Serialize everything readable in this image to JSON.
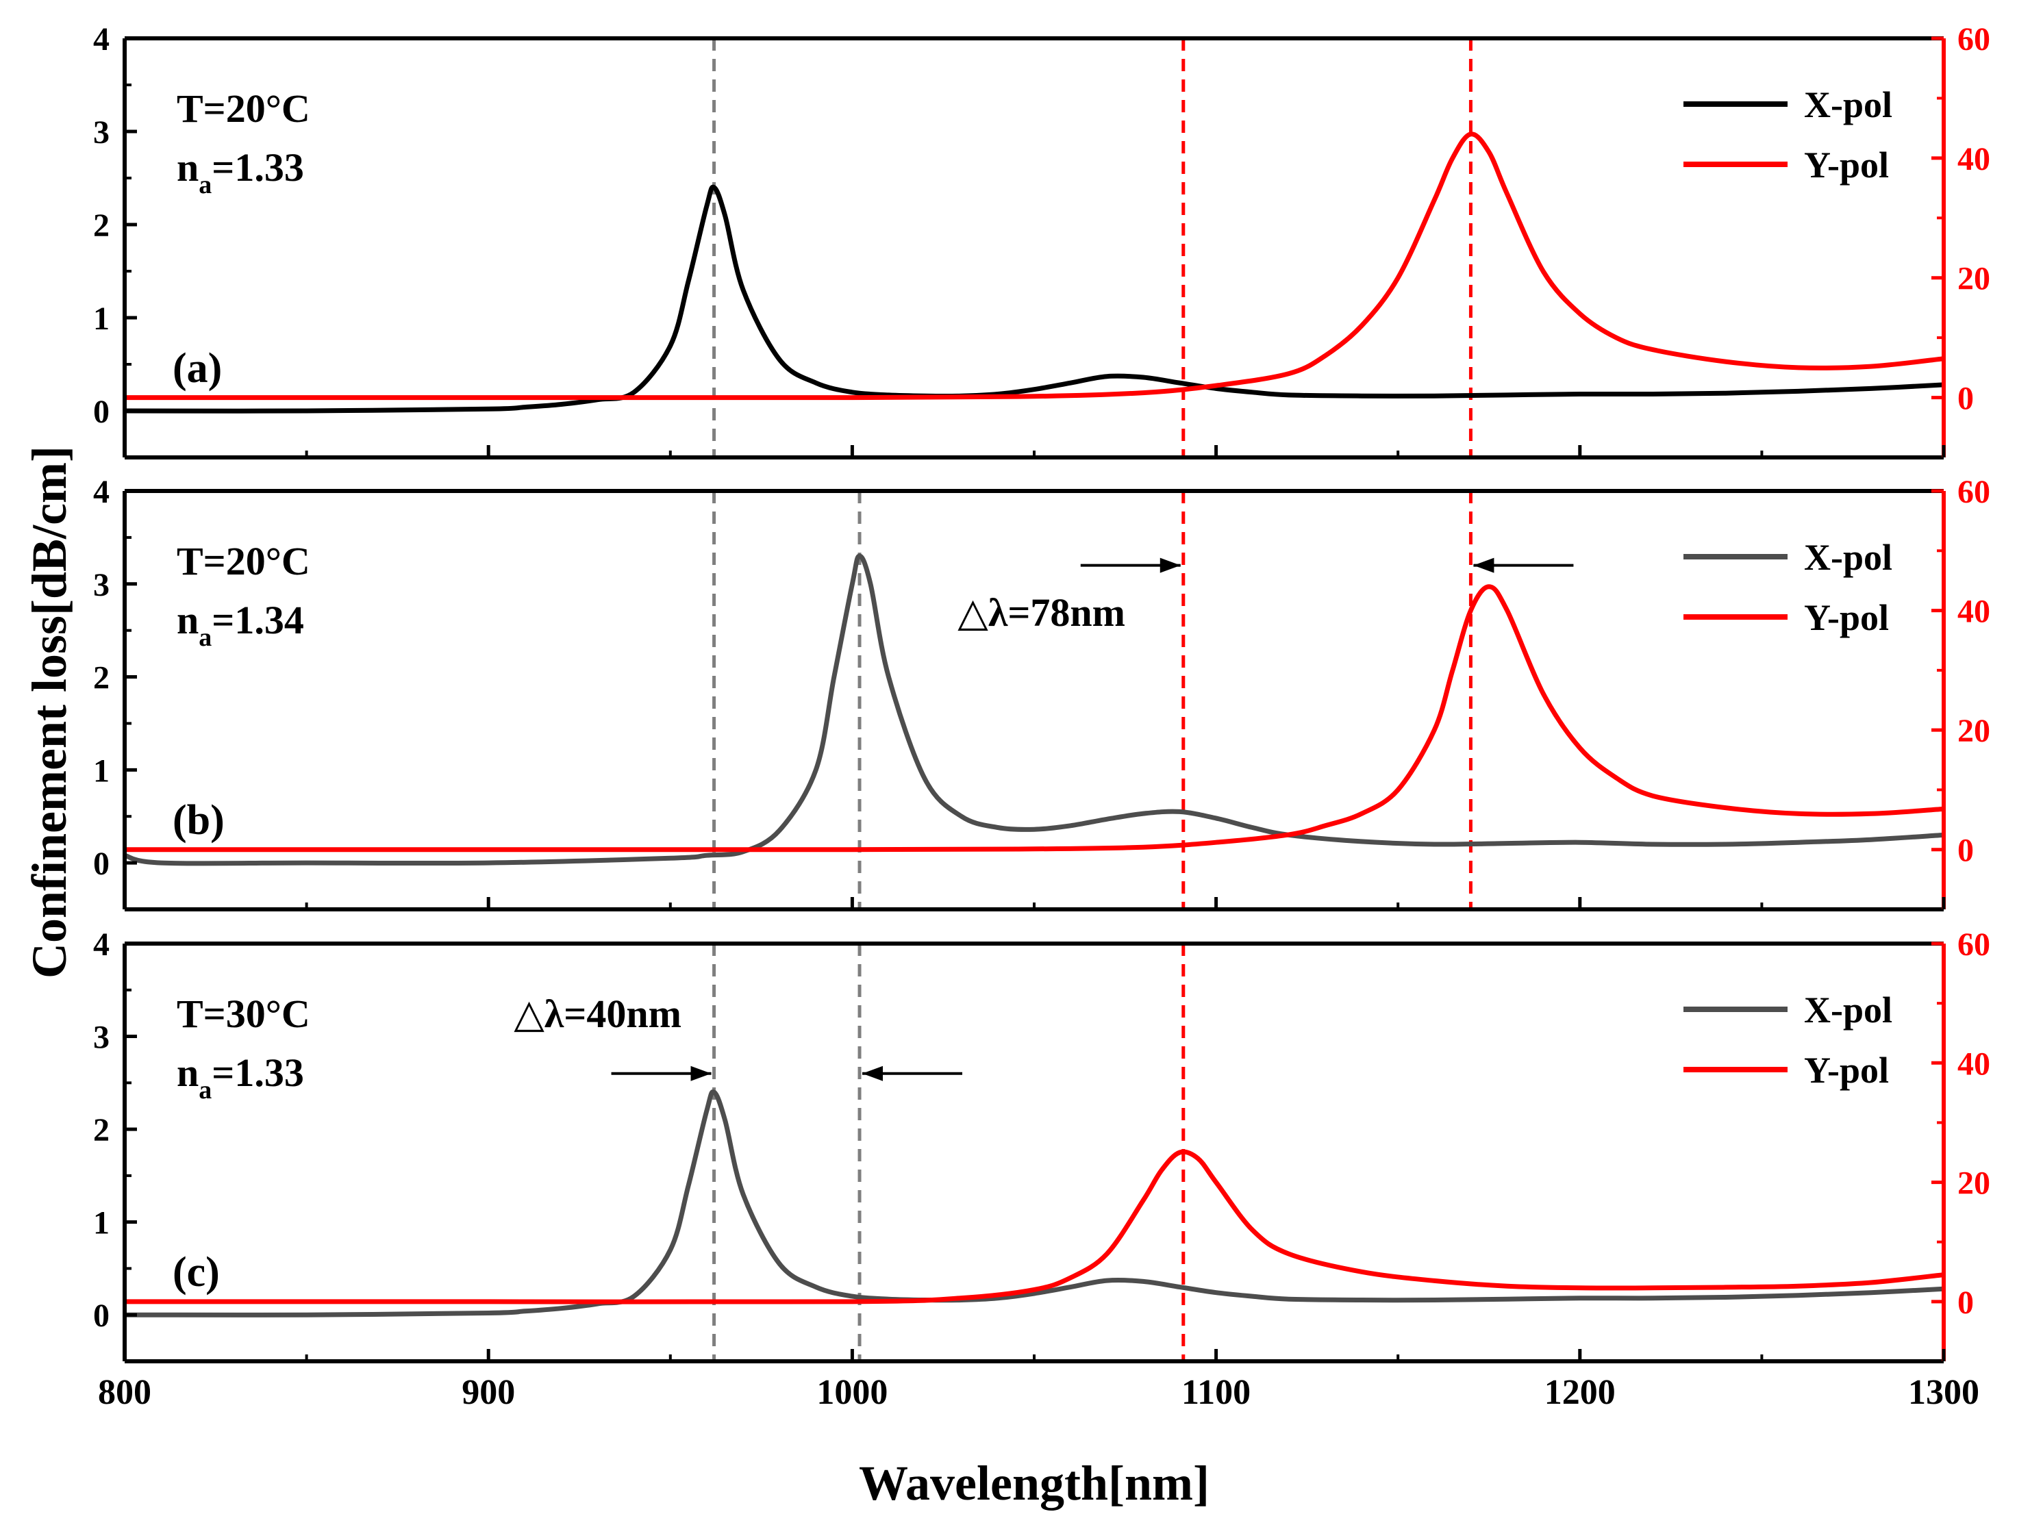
{
  "chart_data": {
    "type": "line",
    "xlabel": "Wavelength[nm]",
    "ylabel_left": "Confinement loss[dB/cm]",
    "xlim": [
      800,
      1300
    ],
    "x_ticks": [
      800,
      900,
      1000,
      1100,
      1200,
      1300
    ],
    "left_ylim": [
      -0.5,
      4
    ],
    "left_ticks": [
      0,
      1,
      2,
      3,
      4
    ],
    "right_ylim": [
      -10,
      60
    ],
    "right_ticks": [
      0,
      20,
      40,
      60
    ],
    "colors": {
      "x_pol": "#000000",
      "x_pol_dim": "#4d4d4d",
      "y_pol": "#ff0000",
      "guide_gray": "#7f7f7f",
      "guide_red": "#ff0000",
      "right_axis": "#ff0000"
    },
    "panels": [
      {
        "tag": "(a)",
        "temp": "T=20°C",
        "na_prefix": "n",
        "na_sub": "a",
        "na_value": "=1.33",
        "x_color_key": "x_pol",
        "series": [
          {
            "name": "X-pol",
            "axis": "left",
            "x": [
              800,
              850,
              900,
              910,
              920,
              930,
              940,
              950,
              955,
              960,
              962,
              965,
              970,
              980,
              990,
              1000,
              1010,
              1020,
              1030,
              1040,
              1050,
              1060,
              1070,
              1080,
              1090,
              1100,
              1110,
              1120,
              1140,
              1160,
              1180,
              1200,
              1220,
              1240,
              1260,
              1280,
              1300
            ],
            "y": [
              0.0,
              0.0,
              0.02,
              0.04,
              0.07,
              0.12,
              0.2,
              0.7,
              1.4,
              2.2,
              2.4,
              2.1,
              1.3,
              0.55,
              0.3,
              0.2,
              0.17,
              0.16,
              0.16,
              0.18,
              0.23,
              0.3,
              0.37,
              0.36,
              0.3,
              0.24,
              0.2,
              0.17,
              0.16,
              0.16,
              0.17,
              0.18,
              0.18,
              0.19,
              0.21,
              0.24,
              0.28
            ]
          },
          {
            "name": "Y-pol",
            "axis": "right",
            "x": [
              800,
              900,
              1000,
              1050,
              1080,
              1100,
              1120,
              1130,
              1140,
              1150,
              1160,
              1165,
              1170,
              1175,
              1180,
              1190,
              1200,
              1210,
              1220,
              1240,
              1260,
              1280,
              1300
            ],
            "y": [
              0,
              0,
              0,
              0.2,
              0.8,
              2,
              4,
              7,
              12,
              20,
              33,
              40,
              44,
              41,
              34,
              21,
              14,
              10,
              8,
              6,
              5,
              5.2,
              6.5
            ]
          }
        ],
        "guides": [
          {
            "x": 962,
            "color_key": "guide_gray"
          },
          {
            "x": 1091,
            "color_key": "guide_red"
          },
          {
            "x": 1170,
            "color_key": "guide_red"
          }
        ],
        "annotations": []
      },
      {
        "tag": "(b)",
        "temp": "T=20°C",
        "na_prefix": "n",
        "na_sub": "a",
        "na_value": "=1.34",
        "x_color_key": "x_pol_dim",
        "series": [
          {
            "name": "X-pol",
            "axis": "left",
            "x": [
              800,
              810,
              850,
              900,
              950,
              960,
              970,
              980,
              990,
              995,
              1000,
              1002,
              1005,
              1010,
              1020,
              1030,
              1040,
              1050,
              1060,
              1070,
              1080,
              1090,
              1100,
              1110,
              1120,
              1140,
              1160,
              1180,
              1200,
              1220,
              1240,
              1260,
              1280,
              1300
            ],
            "y": [
              0.08,
              0.0,
              0.0,
              0.0,
              0.05,
              0.08,
              0.12,
              0.35,
              1.0,
              2.0,
              3.0,
              3.3,
              3.0,
              2.0,
              0.9,
              0.5,
              0.38,
              0.36,
              0.4,
              0.47,
              0.53,
              0.55,
              0.48,
              0.38,
              0.3,
              0.23,
              0.2,
              0.21,
              0.22,
              0.2,
              0.2,
              0.22,
              0.25,
              0.3
            ]
          },
          {
            "name": "Y-pol",
            "axis": "right",
            "x": [
              800,
              900,
              1000,
              1050,
              1080,
              1100,
              1120,
              1130,
              1140,
              1150,
              1160,
              1165,
              1170,
              1175,
              1180,
              1190,
              1200,
              1210,
              1220,
              1240,
              1260,
              1280,
              1300
            ],
            "y": [
              0,
              0,
              0,
              0.1,
              0.4,
              1.2,
              2.5,
              4,
              6,
              10,
              20,
              30,
              40,
              44,
              40,
              26,
              17,
              12,
              9,
              7,
              6,
              6,
              6.8
            ]
          }
        ],
        "guides": [
          {
            "x": 962,
            "color_key": "guide_gray"
          },
          {
            "x": 1002,
            "color_key": "guide_gray"
          },
          {
            "x": 1091,
            "color_key": "guide_red"
          },
          {
            "x": 1170,
            "color_key": "guide_red"
          }
        ],
        "annotations": [
          {
            "label": "△λ=78nm",
            "left_x": 1091,
            "right_x": 1170,
            "arrow_y": 3.2,
            "label_x": 1052,
            "label_y": 2.55
          }
        ]
      },
      {
        "tag": "(c)",
        "temp": "T=30°C",
        "na_prefix": "n",
        "na_sub": "a",
        "na_value": "=1.33",
        "x_color_key": "x_pol_dim",
        "series": [
          {
            "name": "X-pol",
            "axis": "left",
            "x": [
              800,
              850,
              900,
              910,
              920,
              930,
              940,
              950,
              955,
              960,
              962,
              965,
              970,
              980,
              990,
              1000,
              1010,
              1020,
              1030,
              1040,
              1050,
              1060,
              1070,
              1080,
              1090,
              1100,
              1110,
              1120,
              1140,
              1160,
              1180,
              1200,
              1220,
              1240,
              1260,
              1280,
              1300
            ],
            "y": [
              0.0,
              0.0,
              0.02,
              0.04,
              0.07,
              0.12,
              0.2,
              0.7,
              1.4,
              2.2,
              2.4,
              2.1,
              1.3,
              0.55,
              0.3,
              0.2,
              0.17,
              0.16,
              0.16,
              0.18,
              0.23,
              0.3,
              0.37,
              0.36,
              0.3,
              0.24,
              0.2,
              0.17,
              0.16,
              0.16,
              0.17,
              0.18,
              0.18,
              0.19,
              0.21,
              0.24,
              0.28
            ]
          },
          {
            "name": "Y-pol",
            "axis": "right",
            "x": [
              800,
              900,
              1000,
              1030,
              1050,
              1060,
              1070,
              1080,
              1085,
              1090,
              1095,
              1100,
              1110,
              1120,
              1140,
              1160,
              1180,
              1200,
              1220,
              1240,
              1260,
              1280,
              1300
            ],
            "y": [
              0,
              0,
              0,
              0.6,
              2,
              4,
              8,
              17,
              22,
              25,
              24,
              20,
              12,
              8,
              5,
              3.5,
              2.6,
              2.3,
              2.3,
              2.4,
              2.6,
              3.2,
              4.5
            ]
          }
        ],
        "guides": [
          {
            "x": 962,
            "color_key": "guide_gray"
          },
          {
            "x": 1002,
            "color_key": "guide_gray"
          },
          {
            "x": 1091,
            "color_key": "guide_red"
          }
        ],
        "annotations": [
          {
            "label": "△λ=40nm",
            "left_x": 962,
            "right_x": 1002,
            "arrow_y": 2.6,
            "label_x": 930,
            "label_y": 3.1
          }
        ]
      }
    ]
  }
}
